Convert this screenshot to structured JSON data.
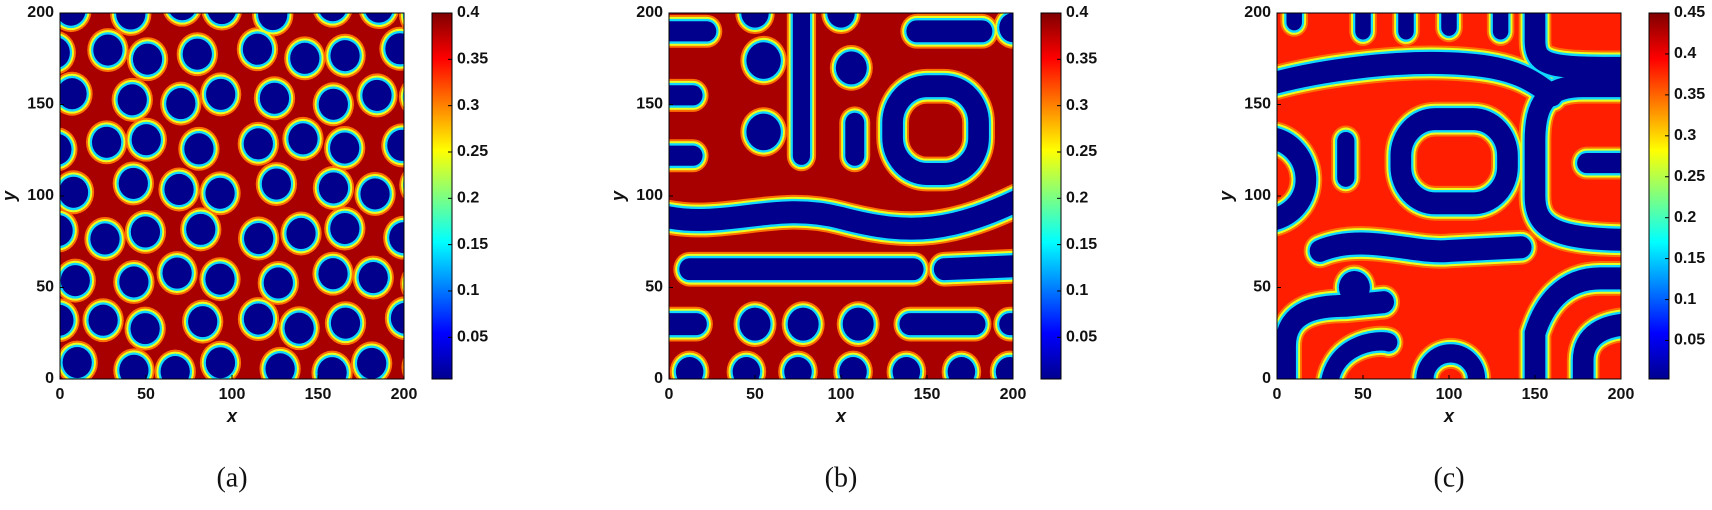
{
  "chart_data": [
    {
      "type": "heatmap",
      "caption": "(a)",
      "xlabel": "x",
      "ylabel": "y",
      "xlim": [
        0,
        200
      ],
      "ylim": [
        0,
        200
      ],
      "xticks": [
        0,
        50,
        100,
        150,
        200
      ],
      "yticks": [
        0,
        50,
        100,
        150,
        200
      ],
      "colormap": "jet",
      "clim": [
        0.005,
        0.4
      ],
      "cticks": [
        0.05,
        0.1,
        0.15,
        0.2,
        0.25,
        0.3,
        0.35,
        0.4
      ]
    },
    {
      "type": "heatmap",
      "caption": "(b)",
      "xlabel": "x",
      "ylabel": "y",
      "xlim": [
        0,
        200
      ],
      "ylim": [
        0,
        200
      ],
      "xticks": [
        0,
        50,
        100,
        150,
        200
      ],
      "yticks": [
        0,
        50,
        100,
        150,
        200
      ],
      "colormap": "jet",
      "clim": [
        0.005,
        0.4
      ],
      "cticks": [
        0.05,
        0.1,
        0.15,
        0.2,
        0.25,
        0.3,
        0.35,
        0.4
      ]
    },
    {
      "type": "heatmap",
      "caption": "(c)",
      "xlabel": "x",
      "ylabel": "y",
      "xlim": [
        0,
        200
      ],
      "ylim": [
        0,
        200
      ],
      "xticks": [
        0,
        50,
        100,
        150,
        200
      ],
      "yticks": [
        0,
        50,
        100,
        150,
        200
      ],
      "colormap": "jet",
      "clim": [
        0.003,
        0.45
      ],
      "cticks": [
        0.05,
        0.1,
        0.15,
        0.2,
        0.25,
        0.3,
        0.35,
        0.4,
        0.45
      ]
    }
  ]
}
